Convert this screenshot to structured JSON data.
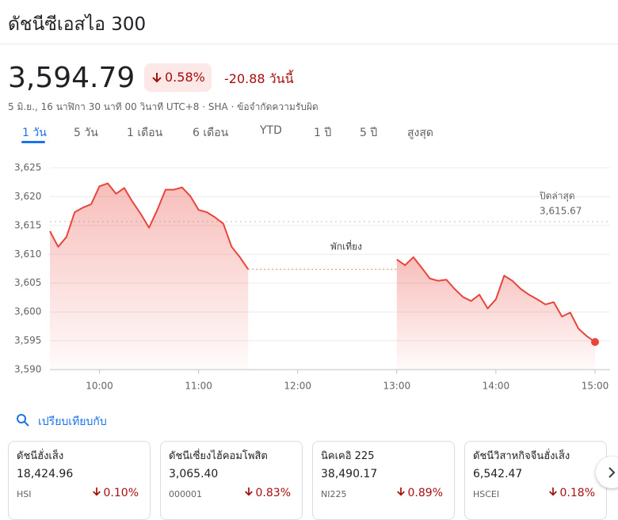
{
  "header": {
    "title": "ดัชนีซีเอสไอ 300",
    "price": "3,594.79",
    "change_pct": "0.58%",
    "change_abs": "-20.88 วันนี้",
    "timestamp": "5 มิ.ย., 16 นาฬิกา 30 นาที 00 วินาที UTC+8 · SHA · ข้อจำกัดความรับผิด"
  },
  "tabs": [
    "1 วัน",
    "5 วัน",
    "1 เดือน",
    "6 เดือน",
    "YTD",
    "1 ปี",
    "5 ปี",
    "สูงสุด"
  ],
  "chart_data": {
    "type": "line",
    "color": "#e8453c",
    "x": [
      "09:30",
      "09:35",
      "09:40",
      "09:45",
      "09:50",
      "09:55",
      "10:00",
      "10:05",
      "10:10",
      "10:15",
      "10:20",
      "10:25",
      "10:30",
      "10:35",
      "10:40",
      "10:45",
      "10:50",
      "10:55",
      "11:00",
      "11:05",
      "11:10",
      "11:15",
      "11:20",
      "11:25",
      "11:30",
      "12:00",
      "13:00",
      "13:05",
      "13:10",
      "13:15",
      "13:20",
      "13:25",
      "13:30",
      "13:35",
      "13:40",
      "13:45",
      "13:50",
      "13:55",
      "14:00",
      "14:05",
      "14:10",
      "14:15",
      "14:20",
      "14:25",
      "14:30",
      "14:35",
      "14:40",
      "14:45",
      "14:50",
      "14:55",
      "15:00"
    ],
    "values": [
      3614,
      3611.3,
      3613,
      3617.3,
      3618.1,
      3618.7,
      3621.8,
      3622.3,
      3620.5,
      3621.5,
      3619.1,
      3617,
      3614.6,
      3617.7,
      3621.2,
      3621.2,
      3621.6,
      3620.1,
      3617.7,
      3617.3,
      3616.4,
      3615.3,
      3611.3,
      3609.5,
      3607.4,
      null,
      3609.1,
      3608.1,
      3609.5,
      3607.7,
      3605.8,
      3605.4,
      3605.6,
      3604,
      3602.6,
      3601.9,
      3603,
      3600.6,
      3602.2,
      3606.3,
      3605.4,
      3604,
      3603,
      3602.2,
      3601.3,
      3601.7,
      3599.2,
      3599.9,
      3597.1,
      3595.8,
      3594.79
    ],
    "xlim": [
      "09:30",
      "15:00"
    ],
    "xticks": [
      "10:00",
      "11:00",
      "12:00",
      "13:00",
      "14:00",
      "15:00"
    ],
    "ylim": [
      3590,
      3625
    ],
    "yticks": [
      {
        "value": 3590,
        "label": "3,590"
      },
      {
        "value": 3595,
        "label": "3,595"
      },
      {
        "value": 3600,
        "label": "3,600"
      },
      {
        "value": 3605,
        "label": "3,605"
      },
      {
        "value": 3610,
        "label": "3,610"
      },
      {
        "value": 3615,
        "label": "3,615"
      },
      {
        "value": 3620,
        "label": "3,620"
      },
      {
        "value": 3625,
        "label": "3,625"
      }
    ],
    "grid": true,
    "prev_close_label": "ปิดล่าสุด",
    "prev_close": {
      "value": 3615.67,
      "label": "3,615.67"
    },
    "lunch_label": "พักเที่ยง"
  },
  "compare": {
    "label": "เปรียบเทียบกับ",
    "cards": [
      {
        "name": "ดัชนีฮั่งเส็ง",
        "value": "18,424.96",
        "code": "HSI",
        "change": "0.10%"
      },
      {
        "name": "ดัชนีเซี่ยงไฮ้คอมโพสิต",
        "value": "3,065.40",
        "code": "000001",
        "change": "0.83%"
      },
      {
        "name": "นิคเคอิ 225",
        "value": "38,490.17",
        "code": "NI225",
        "change": "0.89%"
      },
      {
        "name": "ดัชนีวิสาหกิจจีนฮั่งเส็ง",
        "value": "6,542.47",
        "code": "HSCEI",
        "change": "0.18%"
      }
    ]
  }
}
